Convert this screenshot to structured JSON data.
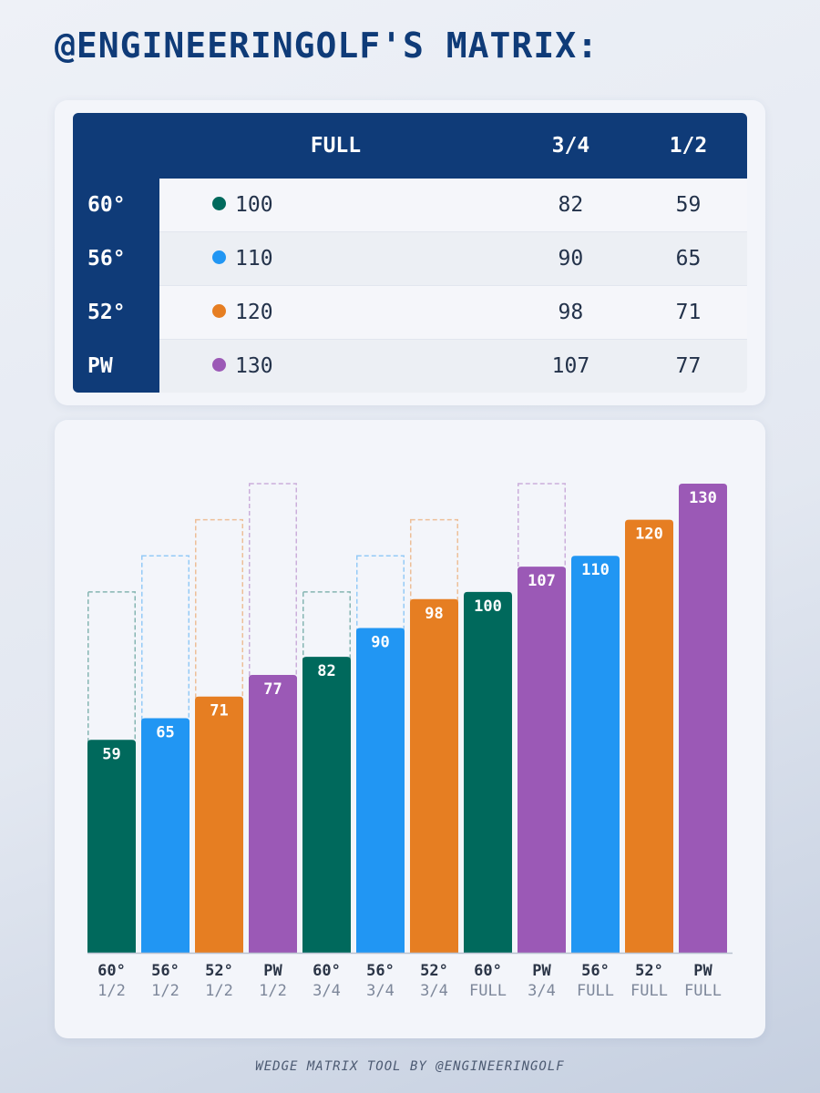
{
  "title": "@ENGINEERINGOLF'S MATRIX:",
  "table": {
    "columns": [
      "FULL",
      "3/4",
      "1/2"
    ],
    "rows": [
      {
        "club": "60°",
        "color": "#00695c",
        "full": "100",
        "three_quarter": "82",
        "half": "59"
      },
      {
        "club": "56°",
        "color": "#2196f3",
        "full": "110",
        "three_quarter": "90",
        "half": "65"
      },
      {
        "club": "52°",
        "color": "#e67e22",
        "full": "120",
        "three_quarter": "98",
        "half": "71"
      },
      {
        "club": "PW",
        "color": "#9b59b6",
        "full": "130",
        "three_quarter": "107",
        "half": "77"
      }
    ]
  },
  "chart_data": {
    "type": "bar",
    "title": "",
    "xlabel": "",
    "ylabel": "",
    "ylim": [
      0,
      130
    ],
    "club_colors": {
      "60°": "#00695c",
      "56°": "#2196f3",
      "52°": "#e67e22",
      "PW": "#9b59b6"
    },
    "bars": [
      {
        "club": "60°",
        "swing": "1/2",
        "value": 59,
        "full_value": 100
      },
      {
        "club": "56°",
        "swing": "1/2",
        "value": 65,
        "full_value": 110
      },
      {
        "club": "52°",
        "swing": "1/2",
        "value": 71,
        "full_value": 120
      },
      {
        "club": "PW",
        "swing": "1/2",
        "value": 77,
        "full_value": 130
      },
      {
        "club": "60°",
        "swing": "3/4",
        "value": 82,
        "full_value": 100
      },
      {
        "club": "56°",
        "swing": "3/4",
        "value": 90,
        "full_value": 110
      },
      {
        "club": "52°",
        "swing": "3/4",
        "value": 98,
        "full_value": 120
      },
      {
        "club": "60°",
        "swing": "FULL",
        "value": 100,
        "full_value": 100
      },
      {
        "club": "PW",
        "swing": "3/4",
        "value": 107,
        "full_value": 130
      },
      {
        "club": "56°",
        "swing": "FULL",
        "value": 110,
        "full_value": 110
      },
      {
        "club": "52°",
        "swing": "FULL",
        "value": 120,
        "full_value": 120
      },
      {
        "club": "PW",
        "swing": "FULL",
        "value": 130,
        "full_value": 130
      }
    ]
  },
  "footer": "WEDGE MATRIX TOOL BY @ENGINEERINGOLF"
}
